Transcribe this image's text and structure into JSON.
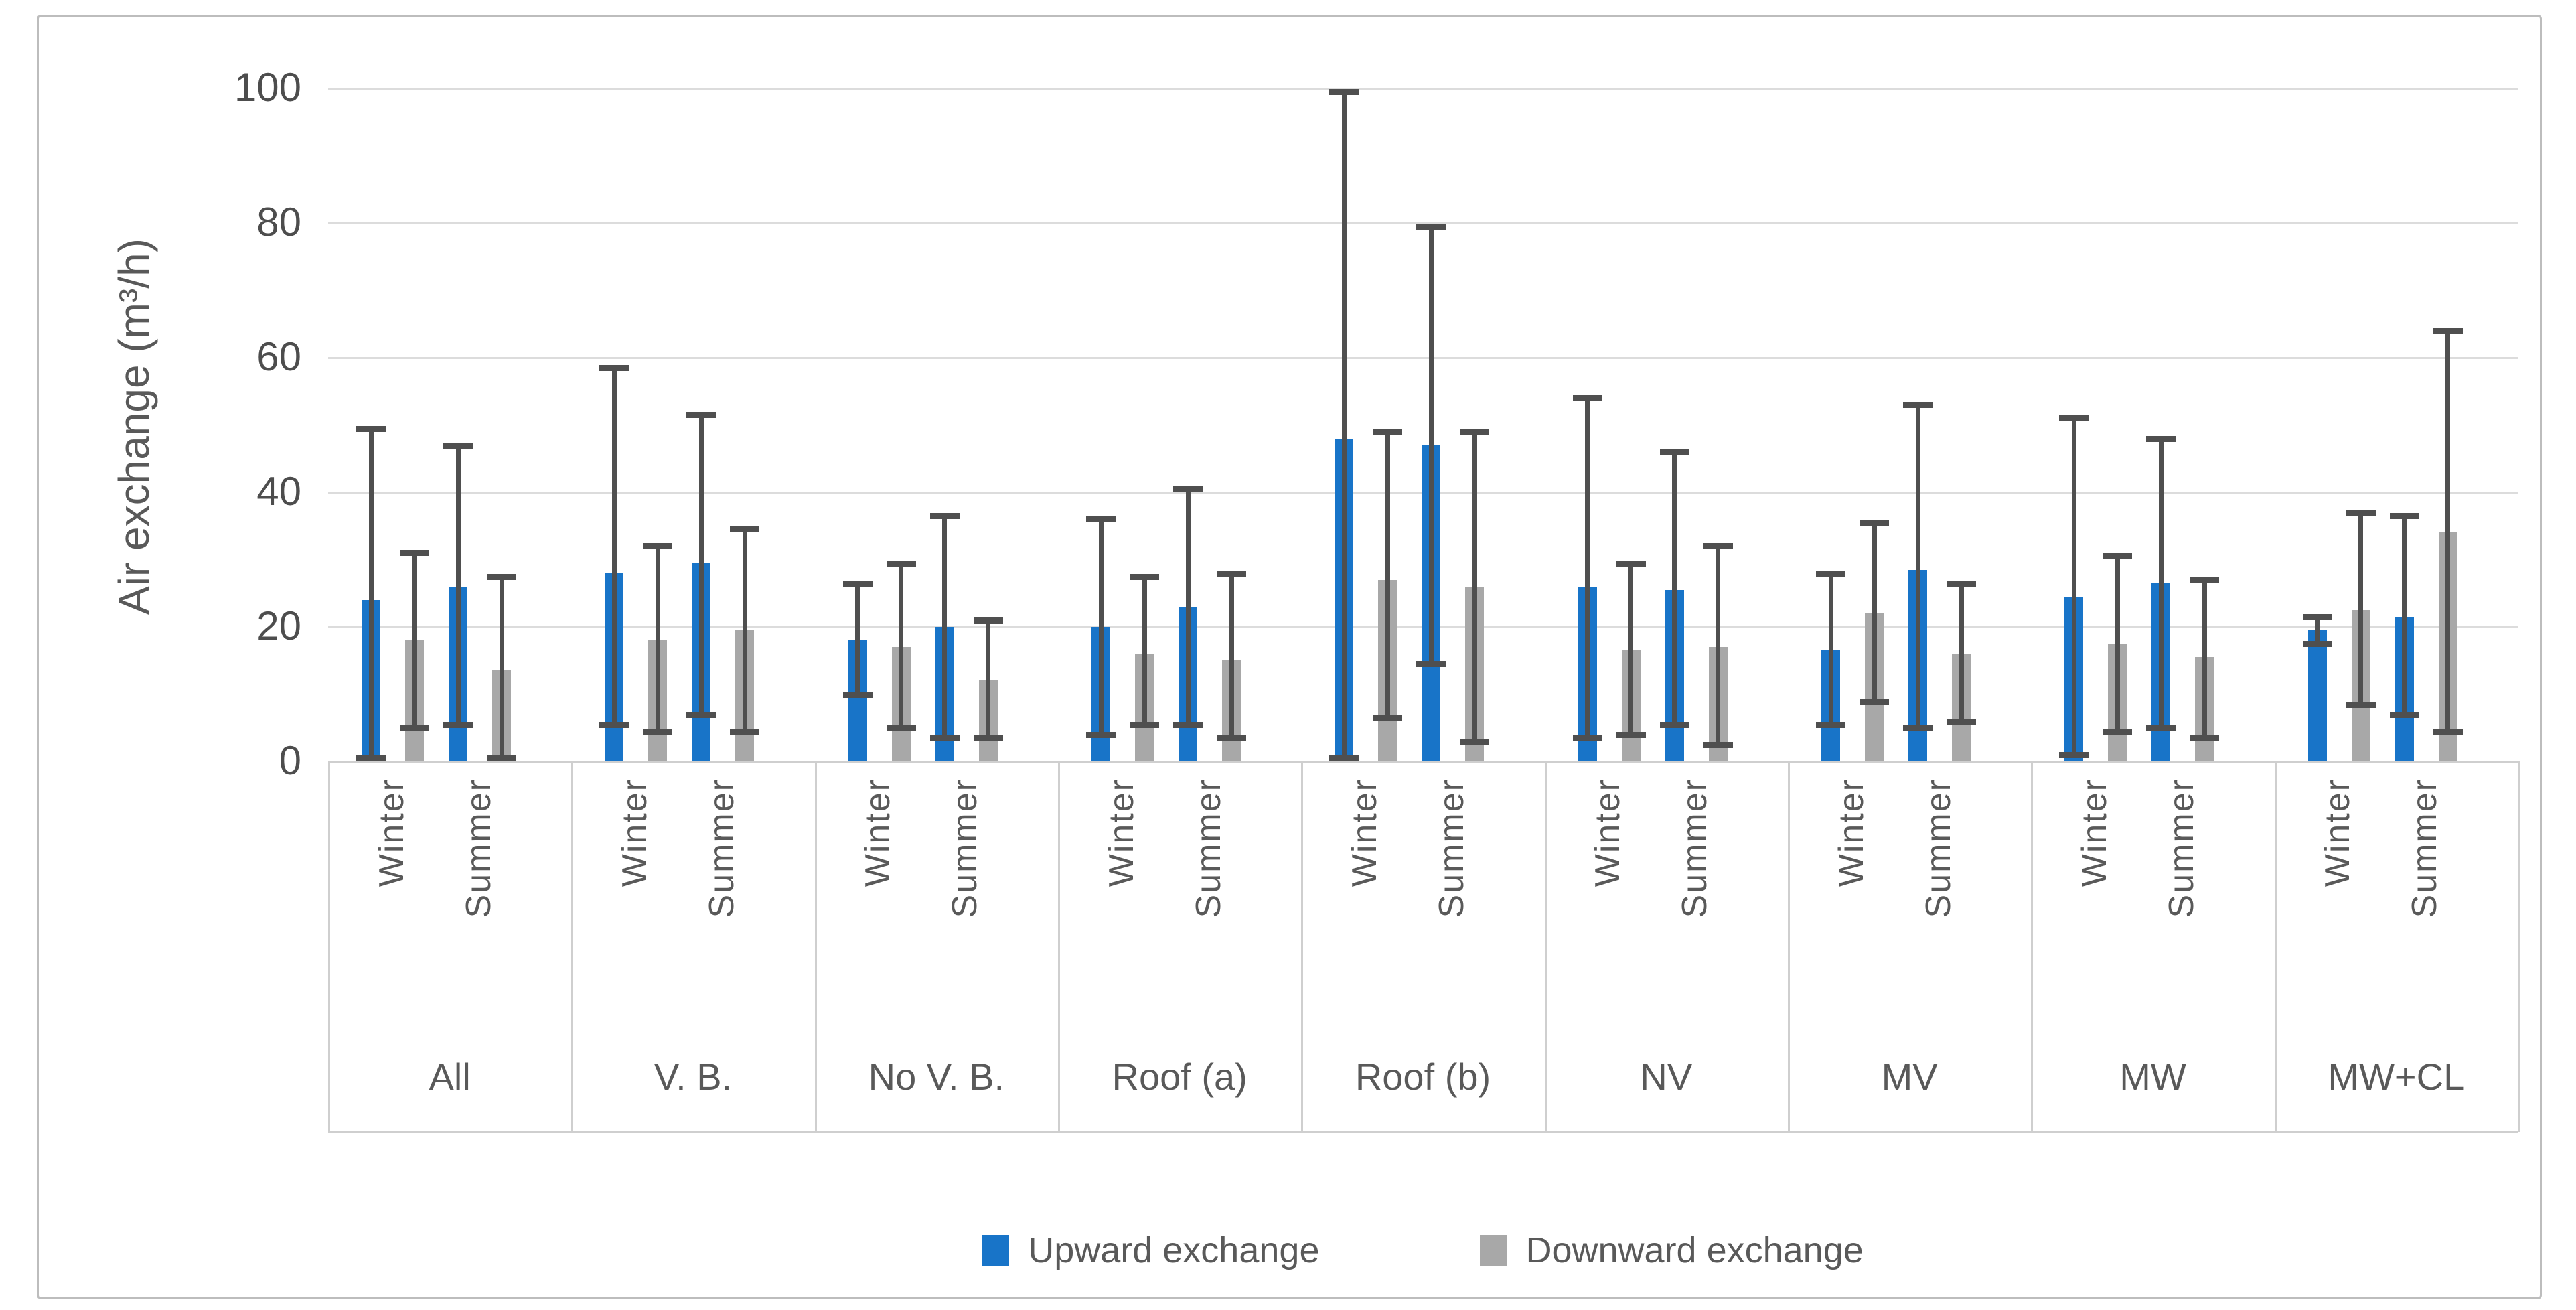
{
  "chart_data": {
    "type": "bar",
    "title": "",
    "ylabel": "Air exchange (m³/h)",
    "xlabel": "",
    "ylim": [
      0,
      100
    ],
    "yticks": [
      0,
      20,
      40,
      60,
      80,
      100
    ],
    "grid": "horizontal",
    "legend_position": "bottom",
    "error_bars": "asymmetric, with caps",
    "series_meta": [
      {
        "name": "Upward exchange",
        "color": "#1874C8"
      },
      {
        "name": "Downward exchange",
        "color": "#A8A8A8"
      }
    ],
    "error_bar_color": "#4F4F4F",
    "season_labels": [
      "Winter",
      "Summer"
    ],
    "groups": [
      {
        "label": "All",
        "seasons": [
          {
            "label": "Winter",
            "upward": {
              "value": 24,
              "err_low": 0.5,
              "err_high": 49.5
            },
            "downward": {
              "value": 18,
              "err_low": 5,
              "err_high": 31
            }
          },
          {
            "label": "Summer",
            "upward": {
              "value": 26,
              "err_low": 5.5,
              "err_high": 47
            },
            "downward": {
              "value": 13.5,
              "err_low": 0.5,
              "err_high": 27.5
            }
          }
        ]
      },
      {
        "label": "V. B.",
        "seasons": [
          {
            "label": "Winter",
            "upward": {
              "value": 28,
              "err_low": 5.5,
              "err_high": 58.5
            },
            "downward": {
              "value": 18,
              "err_low": 4.5,
              "err_high": 32
            }
          },
          {
            "label": "Summer",
            "upward": {
              "value": 29.5,
              "err_low": 7,
              "err_high": 51.5
            },
            "downward": {
              "value": 19.5,
              "err_low": 4.5,
              "err_high": 34.5
            }
          }
        ]
      },
      {
        "label": "No V. B.",
        "seasons": [
          {
            "label": "Winter",
            "upward": {
              "value": 18,
              "err_low": 10,
              "err_high": 26.5
            },
            "downward": {
              "value": 17,
              "err_low": 5,
              "err_high": 29.5
            }
          },
          {
            "label": "Summer",
            "upward": {
              "value": 20,
              "err_low": 3.5,
              "err_high": 36.5
            },
            "downward": {
              "value": 12,
              "err_low": 3.5,
              "err_high": 21
            }
          }
        ]
      },
      {
        "label": "Roof (a)",
        "seasons": [
          {
            "label": "Winter",
            "upward": {
              "value": 20,
              "err_low": 4,
              "err_high": 36
            },
            "downward": {
              "value": 16,
              "err_low": 5.5,
              "err_high": 27.5
            }
          },
          {
            "label": "Summer",
            "upward": {
              "value": 23,
              "err_low": 5.5,
              "err_high": 40.5
            },
            "downward": {
              "value": 15,
              "err_low": 3.5,
              "err_high": 28
            }
          }
        ]
      },
      {
        "label": "Roof (b)",
        "seasons": [
          {
            "label": "Winter",
            "upward": {
              "value": 48,
              "err_low": 0.5,
              "err_high": 99.5
            },
            "downward": {
              "value": 27,
              "err_low": 6.5,
              "err_high": 49
            }
          },
          {
            "label": "Summer",
            "upward": {
              "value": 47,
              "err_low": 14.5,
              "err_high": 79.5
            },
            "downward": {
              "value": 26,
              "err_low": 3,
              "err_high": 49
            }
          }
        ]
      },
      {
        "label": "NV",
        "seasons": [
          {
            "label": "Winter",
            "upward": {
              "value": 26,
              "err_low": 3.5,
              "err_high": 54
            },
            "downward": {
              "value": 16.5,
              "err_low": 4,
              "err_high": 29.5
            }
          },
          {
            "label": "Summer",
            "upward": {
              "value": 25.5,
              "err_low": 5.5,
              "err_high": 46
            },
            "downward": {
              "value": 17,
              "err_low": 2.5,
              "err_high": 32
            }
          }
        ]
      },
      {
        "label": "MV",
        "seasons": [
          {
            "label": "Winter",
            "upward": {
              "value": 16.5,
              "err_low": 5.5,
              "err_high": 28
            },
            "downward": {
              "value": 22,
              "err_low": 9,
              "err_high": 35.5
            }
          },
          {
            "label": "Summer",
            "upward": {
              "value": 28.5,
              "err_low": 5,
              "err_high": 53
            },
            "downward": {
              "value": 16,
              "err_low": 6,
              "err_high": 26.5
            }
          }
        ]
      },
      {
        "label": "MW",
        "seasons": [
          {
            "label": "Winter",
            "upward": {
              "value": 24.5,
              "err_low": 1,
              "err_high": 51
            },
            "downward": {
              "value": 17.5,
              "err_low": 4.5,
              "err_high": 30.5
            }
          },
          {
            "label": "Summer",
            "upward": {
              "value": 26.5,
              "err_low": 5,
              "err_high": 48
            },
            "downward": {
              "value": 15.5,
              "err_low": 3.5,
              "err_high": 27
            }
          }
        ]
      },
      {
        "label": "MW+CL",
        "seasons": [
          {
            "label": "Winter",
            "upward": {
              "value": 19.5,
              "err_low": 17.5,
              "err_high": 21.5
            },
            "downward": {
              "value": 22.5,
              "err_low": 8.5,
              "err_high": 37
            }
          },
          {
            "label": "Summer",
            "upward": {
              "value": 21.5,
              "err_low": 7,
              "err_high": 36.5
            },
            "downward": {
              "value": 34,
              "err_low": 4.5,
              "err_high": 64
            }
          }
        ]
      }
    ]
  }
}
